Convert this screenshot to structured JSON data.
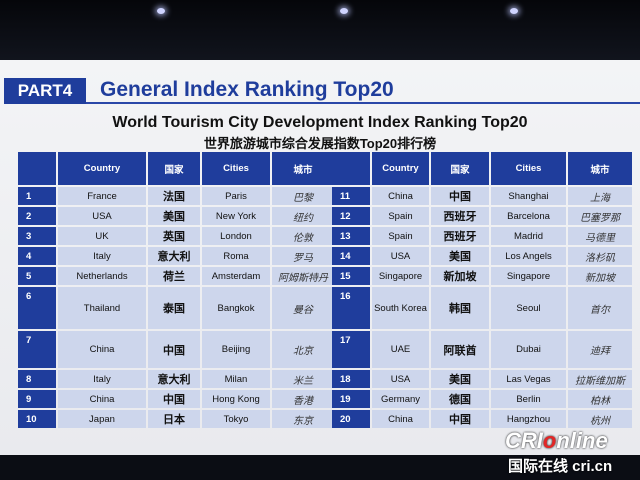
{
  "header": {
    "part_label": "PART4",
    "title": "General Index Ranking Top20"
  },
  "table_title_en": "World Tourism City Development Index Ranking Top20",
  "table_title_zh": "世界旅游城市综合发展指数Top20排行榜",
  "columns": [
    "Country",
    "国家",
    "Cities",
    "城市"
  ],
  "left_rows": [
    {
      "rank": "1",
      "country": "France",
      "country_zh": "法国",
      "city": "Paris",
      "city_zh": "巴黎"
    },
    {
      "rank": "2",
      "country": "USA",
      "country_zh": "美国",
      "city": "New York",
      "city_zh": "纽约"
    },
    {
      "rank": "3",
      "country": "UK",
      "country_zh": "英国",
      "city": "London",
      "city_zh": "伦敦"
    },
    {
      "rank": "4",
      "country": "Italy",
      "country_zh": "意大利",
      "city": "Roma",
      "city_zh": "罗马"
    },
    {
      "rank": "5",
      "country": "Netherlands",
      "country_zh": "荷兰",
      "city": "Amsterdam",
      "city_zh": "阿姆斯特丹"
    },
    {
      "rank": "6",
      "country": "Thailand",
      "country_zh": "泰国",
      "city": "Bangkok",
      "city_zh": "曼谷"
    },
    {
      "rank": "7",
      "country": "China",
      "country_zh": "中国",
      "city": "Beijing",
      "city_zh": "北京"
    },
    {
      "rank": "8",
      "country": "Italy",
      "country_zh": "意大利",
      "city": "Milan",
      "city_zh": "米兰"
    },
    {
      "rank": "9",
      "country": "China",
      "country_zh": "中国",
      "city": "Hong Kong",
      "city_zh": "香港"
    },
    {
      "rank": "10",
      "country": "Japan",
      "country_zh": "日本",
      "city": "Tokyo",
      "city_zh": "东京"
    }
  ],
  "right_rows": [
    {
      "rank": "11",
      "country": "China",
      "country_zh": "中国",
      "city": "Shanghai",
      "city_zh": "上海"
    },
    {
      "rank": "12",
      "country": "Spain",
      "country_zh": "西班牙",
      "city": "Barcelona",
      "city_zh": "巴塞罗那"
    },
    {
      "rank": "13",
      "country": "Spain",
      "country_zh": "西班牙",
      "city": "Madrid",
      "city_zh": "马德里"
    },
    {
      "rank": "14",
      "country": "USA",
      "country_zh": "美国",
      "city": "Los Angels",
      "city_zh": "洛杉矶"
    },
    {
      "rank": "15",
      "country": "Singapore",
      "country_zh": "新加坡",
      "city": "Singapore",
      "city_zh": "新加坡"
    },
    {
      "rank": "16",
      "country": "South Korea",
      "country_zh": "韩国",
      "city": "Seoul",
      "city_zh": "首尔"
    },
    {
      "rank": "17",
      "country": "UAE",
      "country_zh": "阿联酋",
      "city": "Dubai",
      "city_zh": "迪拜"
    },
    {
      "rank": "18",
      "country": "USA",
      "country_zh": "美国",
      "city": "Las Vegas",
      "city_zh": "拉斯维加斯"
    },
    {
      "rank": "19",
      "country": "Germany",
      "country_zh": "德国",
      "city": "Berlin",
      "city_zh": "柏林"
    },
    {
      "rank": "20",
      "country": "China",
      "country_zh": "中国",
      "city": "Hangzhou",
      "city_zh": "杭州"
    }
  ],
  "watermark": {
    "logo_pre": "CRI",
    "logo_o": "o",
    "logo_post": "nline",
    "sub": "国际在线 cri.cn"
  },
  "colors": {
    "accent_blue": "#1f3d9c",
    "cell_fill": "#cdd6ec",
    "screen_bg": "#f3f4f6"
  }
}
